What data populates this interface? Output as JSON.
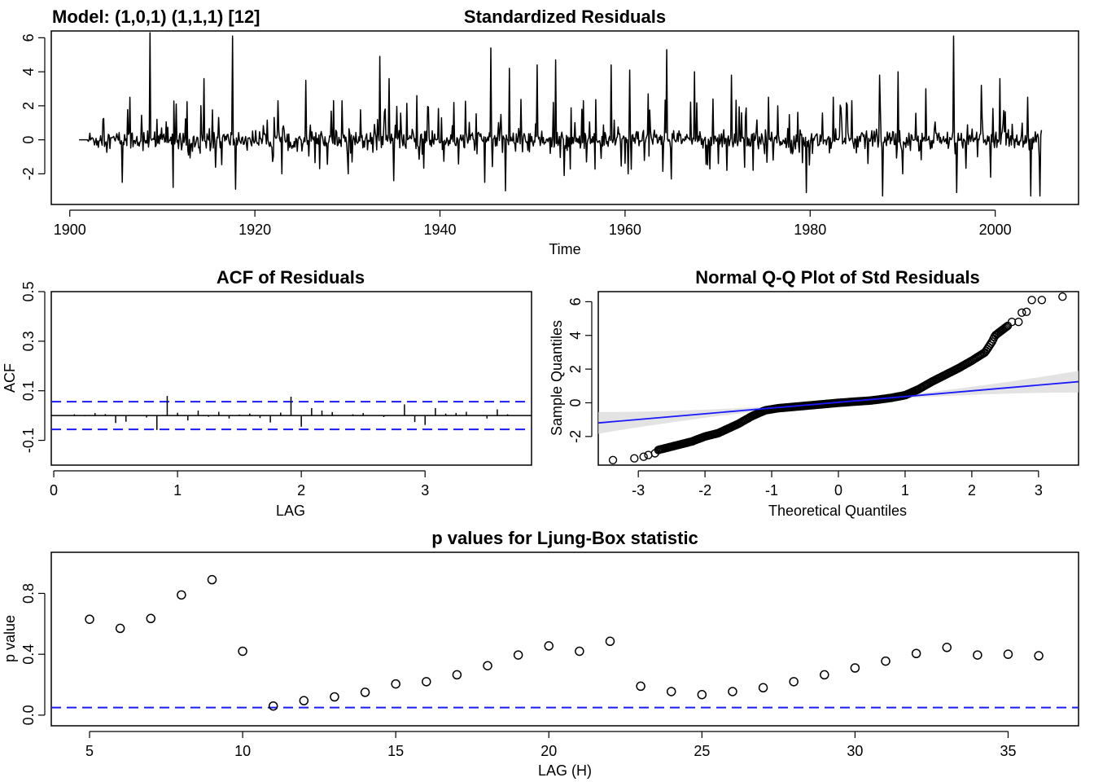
{
  "model_label": "Model: (1,0,1) (1,1,1) [12]",
  "colors": {
    "line": "#000000",
    "ref": "#1a1aff",
    "band": "#d9d9d9"
  },
  "chart_data": [
    {
      "id": "std_residuals",
      "type": "line",
      "title": "Standardized Residuals",
      "xlabel": "Time",
      "ylabel": "",
      "xlim": [
        1898,
        2009
      ],
      "ylim": [
        -3.8,
        6.4
      ],
      "xticks": [
        1900,
        1920,
        1940,
        1960,
        1980,
        2000
      ],
      "yticks": [
        -2,
        0,
        2,
        4,
        6
      ],
      "x_start": 1901.0,
      "x_end": 2005.0,
      "n_points": 1249,
      "spikes": [
        [
          1908.7,
          6.3
        ],
        [
          1917.6,
          6.1
        ],
        [
          1945.5,
          5.4
        ],
        [
          1964.5,
          5.3
        ],
        [
          1995.5,
          6.1
        ],
        [
          1933.5,
          4.9
        ],
        [
          1952.5,
          4.7
        ],
        [
          1950.5,
          4.4
        ],
        [
          1947.5,
          4.2
        ],
        [
          1989.5,
          4.0
        ],
        [
          1914.5,
          3.6
        ],
        [
          1934.5,
          3.6
        ],
        [
          1925.5,
          3.5
        ],
        [
          1958.5,
          4.4
        ],
        [
          1967.5,
          4.0
        ],
        [
          1960.5,
          4.1
        ],
        [
          1971.5,
          3.8
        ],
        [
          1987.5,
          3.8
        ],
        [
          1998.5,
          3.2
        ],
        [
          2000.5,
          3.6
        ],
        [
          1906.5,
          2.5
        ],
        [
          1911.5,
          2.1
        ],
        [
          1922.5,
          2.3
        ],
        [
          1928.5,
          2.3
        ],
        [
          1937.5,
          2.6
        ],
        [
          1941.5,
          2.2
        ],
        [
          1955.5,
          2.3
        ],
        [
          1962.5,
          2.7
        ],
        [
          1969.5,
          2.4
        ],
        [
          1975.5,
          2.5
        ],
        [
          1976.5,
          2.0
        ],
        [
          1982.5,
          2.5
        ],
        [
          1984.5,
          2.3
        ],
        [
          1992.5,
          3.0
        ],
        [
          2003.5,
          2.5
        ],
        [
          1947.1,
          -3.0
        ],
        [
          1987.8,
          -3.3
        ],
        [
          2003.8,
          -3.3
        ],
        [
          2004.8,
          -3.3
        ],
        [
          1979.6,
          -3.1
        ],
        [
          1917.9,
          -2.9
        ],
        [
          1911.2,
          -2.8
        ],
        [
          1905.7,
          -2.5
        ],
        [
          1995.8,
          -3.1
        ],
        [
          1965.0,
          -2.3
        ],
        [
          1930.1,
          -2.0
        ],
        [
          1935.0,
          -2.4
        ],
        [
          1953.4,
          -2.1
        ],
        [
          1944.8,
          -2.5
        ],
        [
          1971.0,
          -1.8
        ],
        [
          1922.9,
          -2.0
        ],
        [
          1960.3,
          -2.0
        ],
        [
          1927.0,
          -1.7
        ],
        [
          1990.0,
          -2.0
        ],
        [
          1999.5,
          -2.2
        ]
      ]
    },
    {
      "id": "acf",
      "type": "bar",
      "title": "ACF of Residuals",
      "xlabel": "LAG",
      "ylabel": "ACF",
      "xlim": [
        -0.02,
        3.86
      ],
      "ylim": [
        -0.2,
        0.5
      ],
      "xticks": [
        0,
        1,
        2,
        3
      ],
      "yticks": [
        -0.1,
        0.1,
        0.3,
        0.5
      ],
      "conf_limit": 0.056,
      "lags": [
        0.0833,
        0.1667,
        0.25,
        0.3333,
        0.4167,
        0.5,
        0.5833,
        0.6667,
        0.75,
        0.8333,
        0.9167,
        1.0,
        1.0833,
        1.1667,
        1.25,
        1.3333,
        1.4167,
        1.5,
        1.5833,
        1.6667,
        1.75,
        1.8333,
        1.9167,
        2.0,
        2.0833,
        2.1667,
        2.25,
        2.3333,
        2.4167,
        2.5,
        2.5833,
        2.6667,
        2.75,
        2.8333,
        2.9167,
        3.0,
        3.0833,
        3.1667,
        3.25,
        3.3333,
        3.4167,
        3.5,
        3.5833,
        3.6667,
        3.75
      ],
      "values": [
        0.0,
        0.005,
        -0.003,
        0.01,
        0.006,
        -0.03,
        -0.025,
        0.0,
        -0.008,
        -0.058,
        0.079,
        0.011,
        -0.02,
        0.02,
        -0.005,
        0.015,
        -0.012,
        0.004,
        0.008,
        -0.01,
        -0.028,
        0.012,
        0.076,
        -0.045,
        0.03,
        0.02,
        0.014,
        0.0,
        0.005,
        0.01,
        0.0,
        -0.006,
        0.0,
        0.045,
        -0.026,
        -0.038,
        0.03,
        0.008,
        0.01,
        0.015,
        0.0,
        -0.012,
        0.025,
        0.005,
        0.0
      ]
    },
    {
      "id": "qq",
      "type": "scatter",
      "title": "Normal Q-Q Plot of Std Residuals",
      "xlabel": "Theoretical Quantiles",
      "ylabel": "Sample Quantiles",
      "xlim": [
        -3.6,
        3.6
      ],
      "ylim": [
        -3.7,
        6.6
      ],
      "xticks": [
        -3,
        -2,
        -1,
        0,
        1,
        2,
        3
      ],
      "yticks": [
        -2,
        0,
        2,
        4,
        6
      ],
      "line": {
        "intercept": 0.03,
        "slope": 0.34
      },
      "curve_points": [
        [
          -3.4,
          -3.4
        ],
        [
          -3.0,
          -3.1
        ],
        [
          -2.6,
          -2.7
        ],
        [
          -2.2,
          -2.3
        ],
        [
          -2.0,
          -2.0
        ],
        [
          -1.8,
          -1.8
        ],
        [
          -1.5,
          -1.25
        ],
        [
          -1.3,
          -0.8
        ],
        [
          -1.1,
          -0.45
        ],
        [
          -0.9,
          -0.32
        ],
        [
          -0.5,
          -0.18
        ],
        [
          0.0,
          0.0
        ],
        [
          0.5,
          0.14
        ],
        [
          0.8,
          0.3
        ],
        [
          1.0,
          0.45
        ],
        [
          1.2,
          0.8
        ],
        [
          1.4,
          1.25
        ],
        [
          1.6,
          1.65
        ],
        [
          1.8,
          2.05
        ],
        [
          2.0,
          2.5
        ],
        [
          2.1,
          2.75
        ],
        [
          2.2,
          3.0
        ],
        [
          2.3,
          3.6
        ],
        [
          2.35,
          4.0
        ],
        [
          2.45,
          4.3
        ],
        [
          2.55,
          4.6
        ],
        [
          2.62,
          4.8
        ],
        [
          2.78,
          5.4
        ],
        [
          3.0,
          6.1
        ],
        [
          3.35,
          6.3
        ]
      ],
      "scatter_tail": [
        [
          -3.38,
          -3.4
        ],
        [
          -3.06,
          -3.3
        ],
        [
          -2.92,
          -3.2
        ],
        [
          -2.85,
          -3.1
        ],
        [
          -2.75,
          -3.0
        ],
        [
          2.6,
          4.8
        ],
        [
          2.7,
          4.8
        ],
        [
          2.75,
          5.35
        ],
        [
          2.82,
          5.4
        ],
        [
          2.9,
          6.1
        ],
        [
          3.05,
          6.1
        ],
        [
          3.36,
          6.3
        ]
      ]
    },
    {
      "id": "ljung_box",
      "type": "scatter",
      "title": "p values for Ljung-Box statistic",
      "xlabel": "LAG (H)",
      "ylabel": "p value",
      "xlim": [
        3.75,
        37.3
      ],
      "ylim": [
        -0.07,
        1.07
      ],
      "xticks": [
        5,
        10,
        15,
        20,
        25,
        30,
        35
      ],
      "yticks": [
        0.0,
        0.4,
        0.8
      ],
      "threshold": 0.05,
      "x": [
        5,
        6,
        7,
        8,
        9,
        10,
        11,
        12,
        13,
        14,
        15,
        16,
        17,
        18,
        19,
        20,
        21,
        22,
        23,
        24,
        25,
        26,
        27,
        28,
        29,
        30,
        31,
        32,
        33,
        34,
        35,
        36
      ],
      "y": [
        0.63,
        0.57,
        0.635,
        0.79,
        0.89,
        0.42,
        0.06,
        0.095,
        0.12,
        0.15,
        0.205,
        0.22,
        0.265,
        0.325,
        0.395,
        0.455,
        0.42,
        0.485,
        0.19,
        0.155,
        0.135,
        0.155,
        0.18,
        0.22,
        0.265,
        0.31,
        0.355,
        0.405,
        0.445,
        0.395,
        0.4,
        0.39
      ]
    }
  ]
}
